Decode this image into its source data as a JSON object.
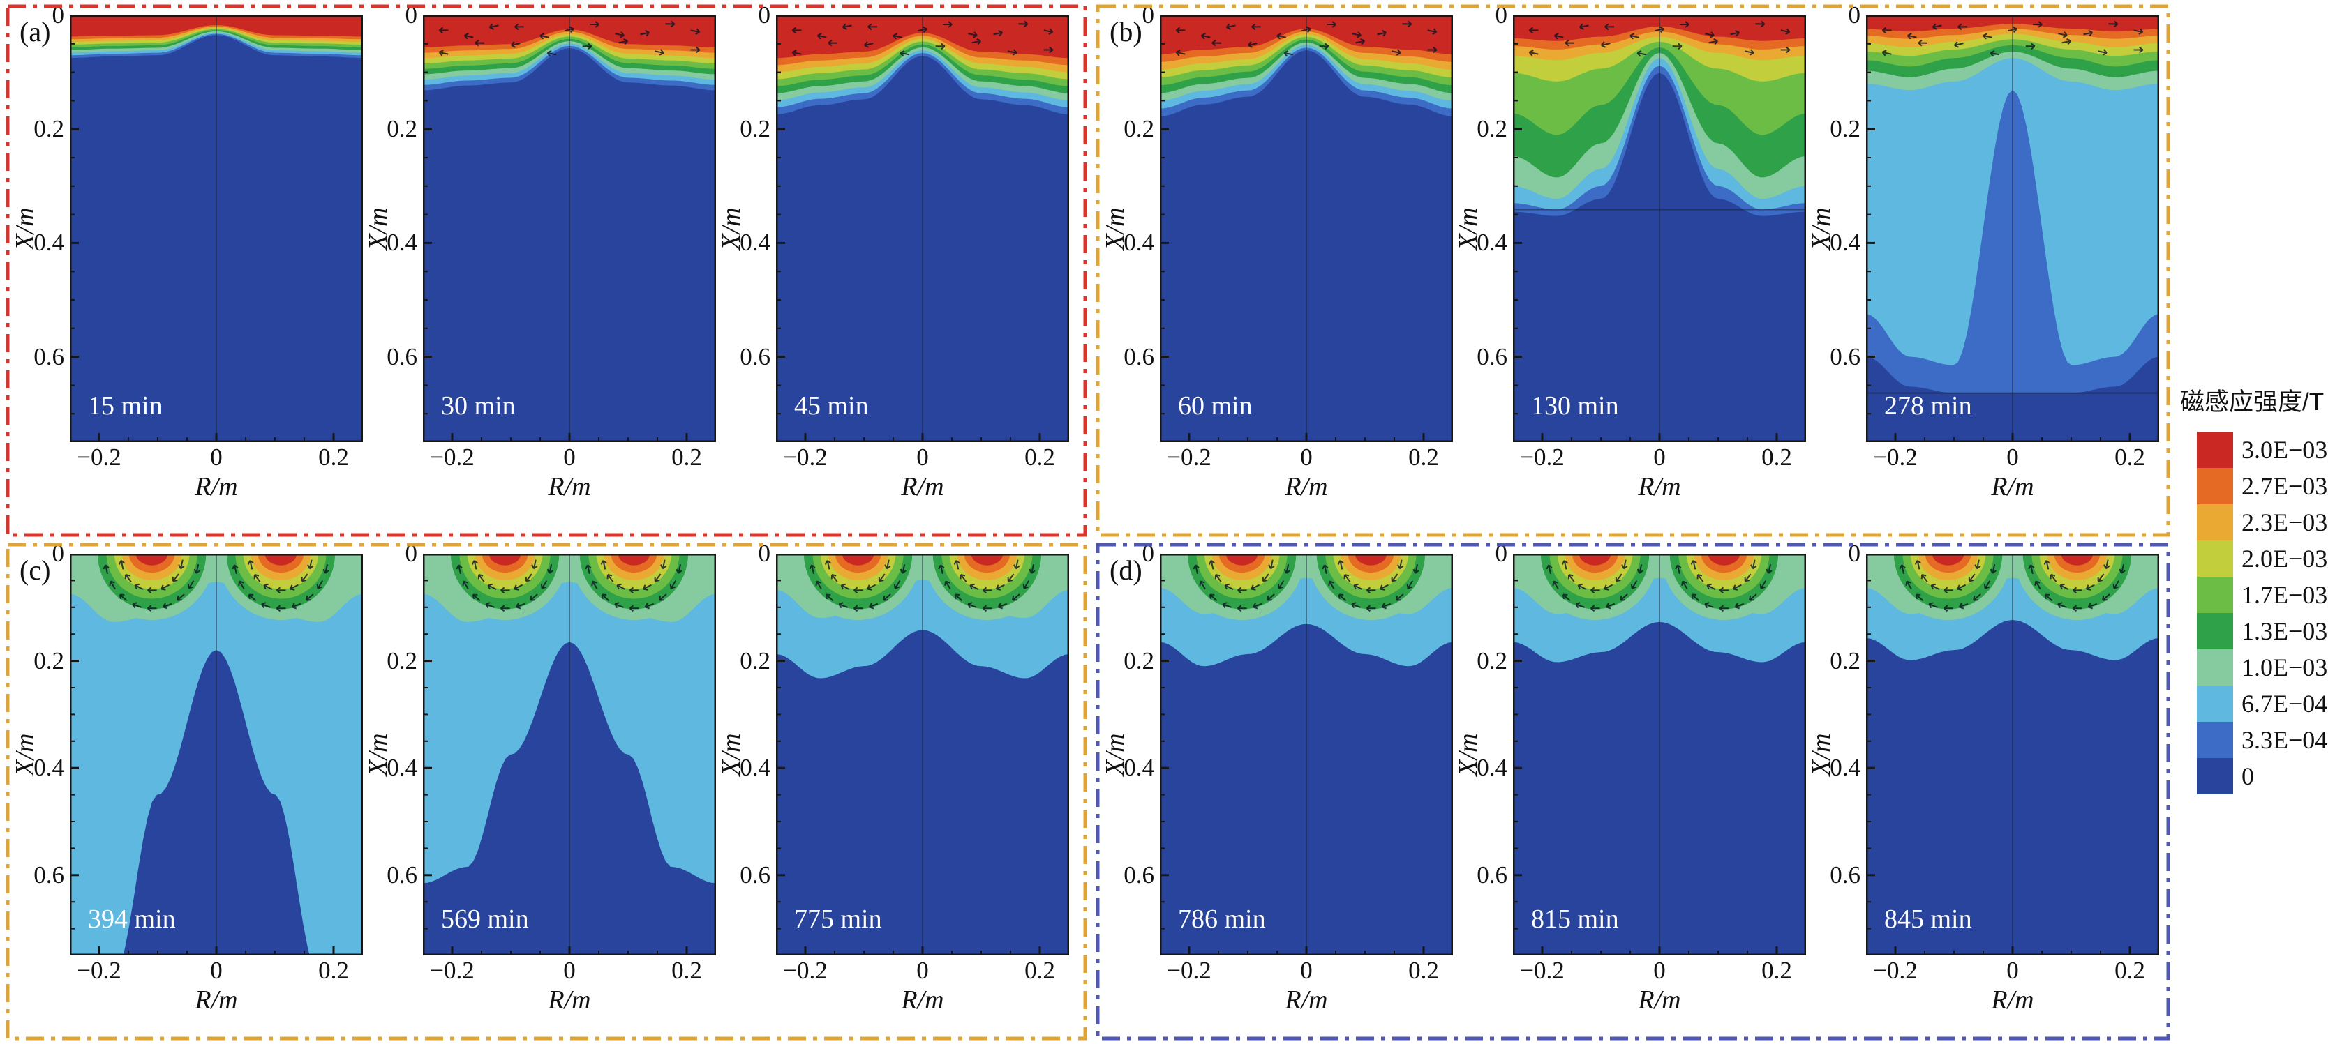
{
  "figure": {
    "groups": [
      {
        "id": "a",
        "label": "(a)",
        "border_color": "#d8362c",
        "panels": [
          {
            "time": "15 min"
          },
          {
            "time": "30 min"
          },
          {
            "time": "45 min"
          }
        ]
      },
      {
        "id": "b",
        "label": "(b)",
        "border_color": "#dea436",
        "panels": [
          {
            "time": "60 min"
          },
          {
            "time": "130 min"
          },
          {
            "time": "278 min"
          }
        ]
      },
      {
        "id": "c",
        "label": "(c)",
        "border_color": "#dea436",
        "panels": [
          {
            "time": "394 min"
          },
          {
            "time": "569 min"
          },
          {
            "time": "775 min"
          }
        ]
      },
      {
        "id": "d",
        "label": "(d)",
        "border_color": "#4f57b0",
        "panels": [
          {
            "time": "786 min"
          },
          {
            "time": "815 min"
          },
          {
            "time": "845 min"
          }
        ]
      }
    ],
    "axes": {
      "xlabel": "R/m",
      "ylabel": "X/m",
      "xticks": [
        "−0.2",
        "0",
        "0.2"
      ],
      "yticks": [
        "0",
        "0.2",
        "0.4",
        "0.6"
      ]
    },
    "colorbar": {
      "title": "磁感应强度/T",
      "labels": [
        "3.0E−03",
        "2.7E−03",
        "2.3E−03",
        "2.0E−03",
        "1.7E−03",
        "1.3E−03",
        "1.0E−03",
        "6.7E−04",
        "3.3E−04",
        "0"
      ],
      "colors": [
        "#c92823",
        "#e56a24",
        "#eaa933",
        "#c2ce3c",
        "#6cbd45",
        "#2fa148",
        "#86cba0",
        "#5fb8df",
        "#3c6cc5",
        "#28449c"
      ]
    }
  },
  "chart_data": {
    "type": "heatmap",
    "subtype": "filled contour maps of magnetic flux density over an axisymmetric section, 12 time snapshots in 4 stage groups",
    "legend_title": "磁感应强度/T",
    "xlabel": "R/m",
    "ylabel": "X/m",
    "xlim": [
      -0.25,
      0.25
    ],
    "ylim": [
      0,
      0.75
    ],
    "y_direction": "downward (0 at top)",
    "xticks": [
      -0.2,
      0,
      0.2
    ],
    "yticks": [
      0,
      0.2,
      0.4,
      0.6
    ],
    "levels_T": [
      0,
      0.00033,
      0.00067,
      0.001,
      0.0013,
      0.0017,
      0.002,
      0.0023,
      0.0027,
      0.003
    ],
    "level_colors_low_to_high": [
      "#28449c",
      "#3c6cc5",
      "#5fb8df",
      "#86cba0",
      "#2fa148",
      "#6cbd45",
      "#c2ce3c",
      "#eaa933",
      "#e56a24",
      "#c92823"
    ],
    "annotations": "small black arrows near the top surface indicate the magnetic field direction",
    "panels": [
      {
        "group": "a",
        "time_min": 15,
        "pattern": "thin high-B red layer at top surface, penetration ~0.05 m"
      },
      {
        "group": "a",
        "time_min": 30,
        "pattern": "stratified bands red→green to ~0.10 m"
      },
      {
        "group": "a",
        "time_min": 45,
        "pattern": "stratified bands to ~0.14 m, deeper at edges"
      },
      {
        "group": "b",
        "time_min": 60,
        "pattern": "bands to ~0.16 m with narrow dip at centre"
      },
      {
        "group": "b",
        "time_min": 130,
        "pattern": "green penetration to ~0.33 m at the sides, dark-blue wedge at centre, interface near X=0.34 m"
      },
      {
        "group": "b",
        "time_min": 278,
        "pattern": "light-blue fill to ~0.66 m, medium-blue centre column, dark band below"
      },
      {
        "group": "c",
        "time_min": 394,
        "pattern": "two red-cored surface lobes, cyan side channels reaching the bottom"
      },
      {
        "group": "c",
        "time_min": 569,
        "pattern": "two surface lobes, cyan region to ~0.55 m"
      },
      {
        "group": "c",
        "time_min": 775,
        "pattern": "two surface lobes, shallow scalloped cyan band ~0.20 m"
      },
      {
        "group": "d",
        "time_min": 786,
        "pattern": "steady two-lobe pattern, cyan band ~0.18 m"
      },
      {
        "group": "d",
        "time_min": 815,
        "pattern": "steady two-lobe pattern, cyan band ~0.18 m"
      },
      {
        "group": "d",
        "time_min": 845,
        "pattern": "steady two-lobe pattern, cyan band ~0.17 m"
      }
    ]
  }
}
